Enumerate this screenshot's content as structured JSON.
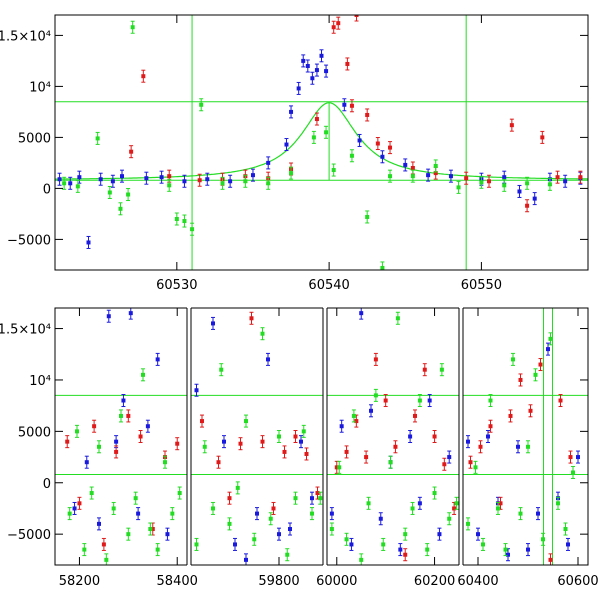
{
  "chart_data": [
    {
      "type": "scatter",
      "title": "",
      "xlabel": "",
      "ylabel": "",
      "xlim": [
        60522,
        60557
      ],
      "ylim": [
        -8000,
        17000
      ],
      "xticks": [
        60530,
        60540,
        60550
      ],
      "yticks": [
        -5000,
        0,
        5000,
        10000,
        15000
      ],
      "ytick_labels": [
        "−5000",
        "0",
        "5000",
        "10⁴",
        "1.5×10⁴"
      ],
      "grid": false,
      "legend": "none",
      "reference_lines": {
        "horizontal": [
          8500,
          800
        ],
        "vertical": [
          60531,
          60549
        ]
      },
      "model_curve": {
        "color": "#22dd22",
        "peak_x": 60540,
        "peak_y": 8400,
        "baseline": 800,
        "width_days": 2.2
      },
      "series": [
        {
          "color": "#1a1adf",
          "x": [
            60522.3,
            60523,
            60523.6,
            60524.2,
            60525,
            60525.8,
            60526.4,
            60528,
            60529,
            60530.5,
            60532,
            60533.5,
            60535,
            60536,
            60537.2,
            60537.5,
            60538,
            60538.3,
            60538.6,
            60538.9,
            60539.2,
            60539.5,
            60539.8,
            60541,
            60542,
            60543.5,
            60545,
            60546.5,
            60548,
            60550,
            60551.5,
            60552.5,
            60553.5,
            60554.5,
            60555.5,
            60556.5
          ],
          "y": [
            900,
            500,
            1100,
            -5300,
            900,
            700,
            1200,
            1000,
            1100,
            700,
            900,
            700,
            1300,
            2500,
            4300,
            7500,
            9800,
            12500,
            12000,
            10800,
            11600,
            13000,
            11500,
            8200,
            4700,
            3100,
            2300,
            1300,
            1200,
            900,
            1100,
            -300,
            -1000,
            900,
            700,
            1000
          ]
        },
        {
          "color": "#e01a1a",
          "x": [
            60527,
            60527.8,
            60529.5,
            60531.5,
            60533,
            60534.5,
            60536,
            60537.5,
            60539.2,
            60540.3,
            60540.6,
            60541.2,
            60541.5,
            60541.8,
            60542.5,
            60543.2,
            60544,
            60545.5,
            60547,
            60549,
            60550.5,
            60552,
            60553,
            60554,
            60555,
            60556.5
          ],
          "y": [
            3600,
            11000,
            1200,
            800,
            900,
            1200,
            1000,
            1900,
            6800,
            15800,
            16200,
            12200,
            8100,
            17000,
            7200,
            4400,
            4000,
            2000,
            1500,
            1000,
            700,
            6200,
            -1700,
            5000,
            1100,
            1100
          ]
        },
        {
          "color": "#22dd22",
          "x": [
            60522.6,
            60523.5,
            60524.8,
            60525.6,
            60526.3,
            60526.8,
            60527.1,
            60529.5,
            60530,
            60530.5,
            60531,
            60531.6,
            60533,
            60534.5,
            60536,
            60537.5,
            60539,
            60539.8,
            60540.3,
            60541.5,
            60542.5,
            60543.5,
            60544,
            60545.5,
            60547,
            60548.5,
            60550,
            60551.5,
            60553,
            60554.5
          ],
          "y": [
            500,
            200,
            4900,
            -400,
            -2000,
            -600,
            15800,
            300,
            -3000,
            -3200,
            -4000,
            8200,
            500,
            700,
            500,
            1500,
            5000,
            5500,
            1800,
            3200,
            -2800,
            -7800,
            1200,
            1200,
            2200,
            100,
            600,
            300,
            500,
            400
          ]
        }
      ]
    },
    {
      "type": "scatter",
      "title": "",
      "xlabel": "",
      "ylabel": "",
      "ylim": [
        -8000,
        17000
      ],
      "xtick_labels": [
        "58200",
        "58400",
        "59800",
        "60000",
        "60200",
        "60400",
        "60600"
      ],
      "yticks": [
        -5000,
        0,
        5000,
        10000,
        15000
      ],
      "ytick_labels": [
        "−5000",
        "0",
        "5000",
        "10⁴",
        "1.5×10⁴"
      ],
      "grid": false,
      "legend": "none",
      "reference_lines": {
        "horizontal": [
          8500,
          800
        ],
        "vertical": [
          60531,
          60549
        ]
      },
      "segments": [
        {
          "xlim": [
            58150,
            58420
          ]
        },
        {
          "xlim": [
            59640,
            59880
          ]
        },
        {
          "xlim": [
            59980,
            60250
          ]
        },
        {
          "xlim": [
            60370,
            60620
          ]
        }
      ],
      "series": [
        {
          "color": "#1a1adf",
          "x": [
            58190,
            58215,
            58240,
            58260,
            58275,
            58290,
            58305,
            58320,
            58340,
            58360,
            58380,
            59650,
            59680,
            59700,
            59720,
            59740,
            59760,
            59780,
            59800,
            59820,
            59840,
            59860,
            59990,
            60010,
            60030,
            60050,
            60070,
            60090,
            60110,
            60130,
            60150,
            60170,
            60190,
            60210,
            60230,
            60380,
            60400,
            60420,
            60440,
            60460,
            60480,
            60500,
            60520,
            60540,
            60560,
            60580,
            60600
          ],
          "y": [
            -2500,
            2000,
            -4000,
            16200,
            4000,
            8000,
            16500,
            -3000,
            5500,
            12000,
            -5000,
            9000,
            15500,
            4000,
            -6000,
            -7500,
            -3000,
            12000,
            -5000,
            -4500,
            4000,
            -1500,
            -3000,
            5500,
            -6000,
            16500,
            7000,
            -3500,
            2000,
            -6500,
            4500,
            -2000,
            8000,
            -5000,
            2500,
            4000,
            -5000,
            4500,
            -2000,
            -7000,
            3500,
            -6500,
            -3000,
            13000,
            -1500,
            -6000,
            2500
          ]
        },
        {
          "color": "#e01a1a",
          "x": [
            58175,
            58200,
            58230,
            58250,
            58275,
            58300,
            58325,
            58350,
            58375,
            58400,
            59660,
            59690,
            59710,
            59730,
            59750,
            59770,
            59790,
            59810,
            59830,
            59850,
            59870,
            60000,
            60020,
            60040,
            60060,
            60080,
            60100,
            60120,
            60140,
            60160,
            60180,
            60200,
            60220,
            60240,
            60385,
            60405,
            60425,
            60445,
            60465,
            60485,
            60505,
            60525,
            60545,
            60565,
            60585
          ],
          "y": [
            4000,
            -2000,
            5500,
            -6000,
            3000,
            6500,
            4500,
            -4500,
            2500,
            3800,
            6000,
            2000,
            -1500,
            3800,
            16000,
            4000,
            -2500,
            3000,
            4500,
            2800,
            -1000,
            1500,
            3000,
            6000,
            2500,
            12000,
            8000,
            3500,
            -7000,
            6500,
            11000,
            4500,
            1800,
            -2500,
            2000,
            3500,
            5500,
            -2000,
            6500,
            10000,
            7000,
            11500,
            -7500,
            8000,
            2500
          ]
        },
        {
          "color": "#22dd22",
          "x": [
            58180,
            58195,
            58210,
            58225,
            58240,
            58255,
            58270,
            58285,
            58300,
            58315,
            58330,
            58345,
            58360,
            58375,
            58390,
            58405,
            59650,
            59665,
            59680,
            59695,
            59710,
            59725,
            59740,
            59755,
            59770,
            59785,
            59800,
            59815,
            59830,
            59845,
            59860,
            59875,
            59990,
            60005,
            60020,
            60035,
            60050,
            60065,
            60080,
            60095,
            60110,
            60125,
            60140,
            60155,
            60170,
            60185,
            60200,
            60215,
            60230,
            60245,
            60380,
            60395,
            60410,
            60425,
            60440,
            60455,
            60470,
            60485,
            60500,
            60515,
            60530,
            60545,
            60560,
            60575,
            60590
          ],
          "y": [
            -3000,
            5000,
            -6500,
            -1000,
            3500,
            -7500,
            -2500,
            6500,
            -5000,
            -1500,
            10500,
            -4500,
            -6500,
            2000,
            -3000,
            -1000,
            -6000,
            3500,
            -2500,
            11000,
            -4000,
            -500,
            6000,
            -5500,
            14500,
            -3500,
            4500,
            -7000,
            -1500,
            5000,
            -3000,
            -1500,
            -4500,
            1500,
            -5500,
            6500,
            -7500,
            -2000,
            8500,
            -6000,
            2000,
            16000,
            -5000,
            -2500,
            8000,
            -6500,
            -1000,
            11000,
            -3500,
            -2000,
            -4000,
            1500,
            -6000,
            8000,
            -2500,
            -6500,
            12000,
            -3000,
            3500,
            10500,
            -5500,
            14000,
            -2000,
            -4500,
            1000
          ]
        }
      ]
    }
  ]
}
